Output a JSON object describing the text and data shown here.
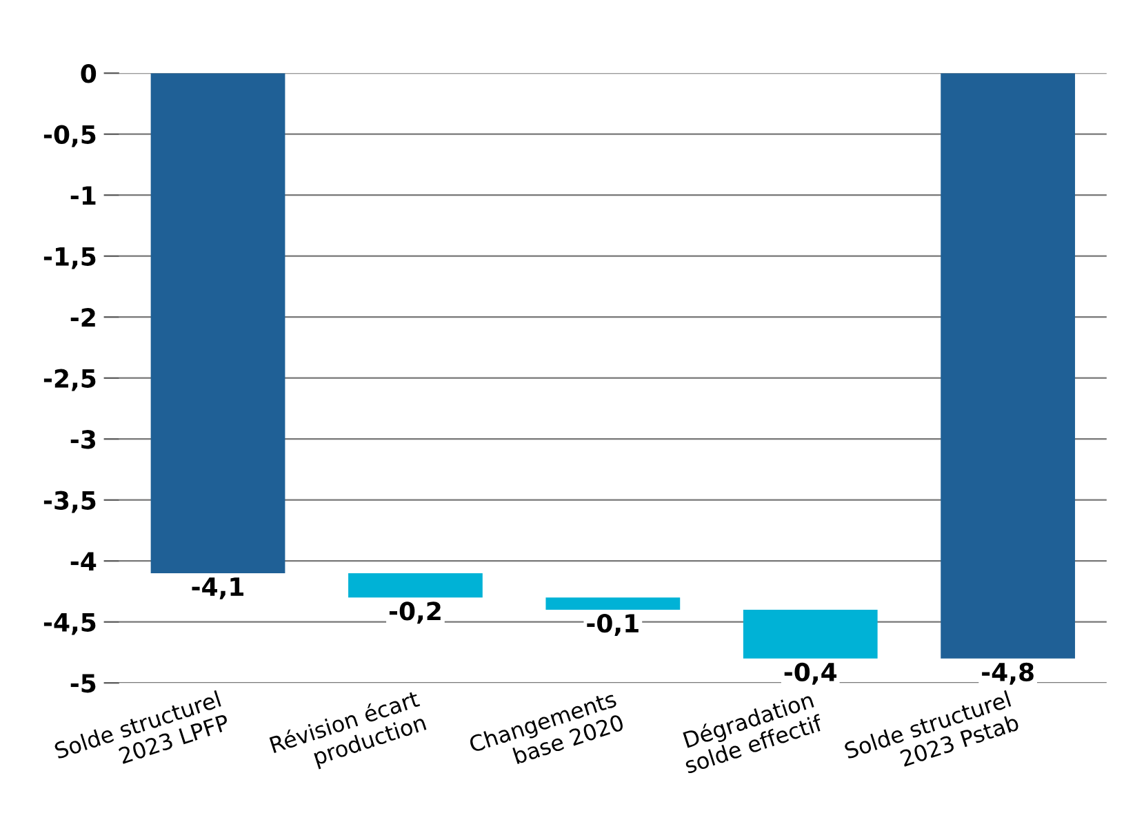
{
  "chart_data": {
    "type": "bar",
    "categories": [
      "Solde structurel\n2023 LPFP",
      "Révision écart\nproduction",
      "Changements\nbase 2020",
      "Dégradation\nsolde effectif",
      "Solde structurel\n2023 Pstab"
    ],
    "values": [
      -4.1,
      -0.2,
      -0.1,
      -0.4,
      -4.8
    ],
    "base": [
      0,
      -4.1,
      -4.3,
      -4.4,
      0
    ],
    "colors": [
      "#1f6096",
      "#00b2d6",
      "#00b2d6",
      "#00b2d6",
      "#1f6096"
    ],
    "value_labels": [
      "-4,1",
      "-0,2",
      "-0,1",
      "-0,4",
      "-4,8"
    ],
    "ylim": [
      -5,
      0
    ],
    "yticks": [
      {
        "value": 0,
        "label": "0"
      },
      {
        "value": -0.5,
        "label": "-0,5"
      },
      {
        "value": -1,
        "label": "-1"
      },
      {
        "value": -1.5,
        "label": "-1,5"
      },
      {
        "value": -2,
        "label": "-2"
      },
      {
        "value": -2.5,
        "label": "-2,5"
      },
      {
        "value": -3,
        "label": "-3"
      },
      {
        "value": -3.5,
        "label": "-3,5"
      },
      {
        "value": -4,
        "label": "-4"
      },
      {
        "value": -4.5,
        "label": "-4,5"
      },
      {
        "value": -5,
        "label": "-5"
      }
    ],
    "grid": "y"
  }
}
